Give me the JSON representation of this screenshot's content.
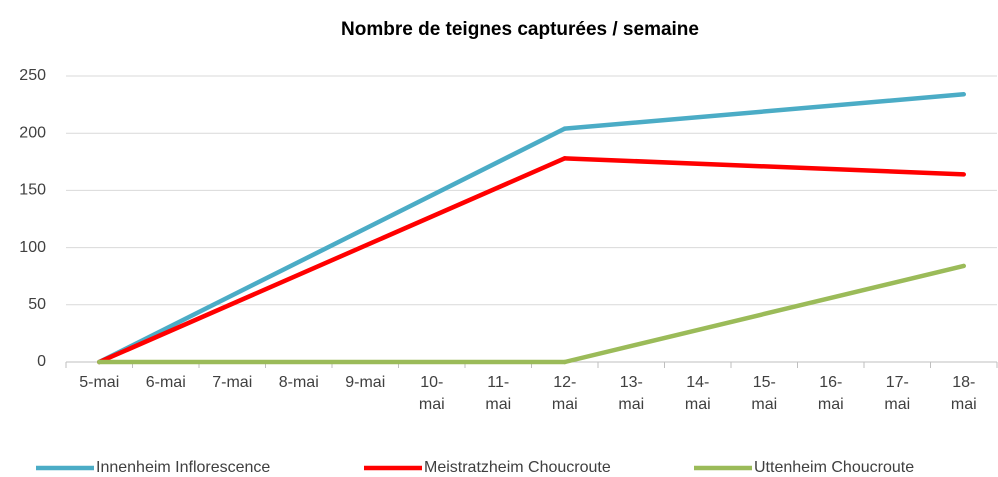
{
  "chart_data": {
    "type": "line",
    "title": "Nombre de teignes capturées / semaine",
    "categories": [
      "5-mai",
      "6-mai",
      "7-mai",
      "8-mai",
      "9-mai",
      "10-mai",
      "11-mai",
      "12-mai",
      "13-mai",
      "14-mai",
      "15-mai",
      "16-mai",
      "17-mai",
      "18-mai"
    ],
    "series": [
      {
        "name": "Innenheim Inflorescence",
        "color": "#4bacc6",
        "values": [
          0,
          null,
          null,
          null,
          null,
          null,
          null,
          204,
          null,
          null,
          null,
          null,
          null,
          234
        ]
      },
      {
        "name": "Meistratzheim Choucroute",
        "color": "#ff0000",
        "values": [
          0,
          null,
          null,
          null,
          null,
          null,
          null,
          178,
          null,
          null,
          null,
          null,
          null,
          164
        ]
      },
      {
        "name": "Uttenheim Choucroute",
        "color": "#9bbb59",
        "values": [
          0,
          null,
          null,
          null,
          null,
          null,
          null,
          0,
          null,
          null,
          null,
          null,
          null,
          84
        ]
      }
    ],
    "connect_gaps": true,
    "ylim": [
      0,
      250
    ],
    "yticks": [
      0,
      50,
      100,
      150,
      200,
      250
    ],
    "grid": true,
    "legend": "bottom"
  }
}
